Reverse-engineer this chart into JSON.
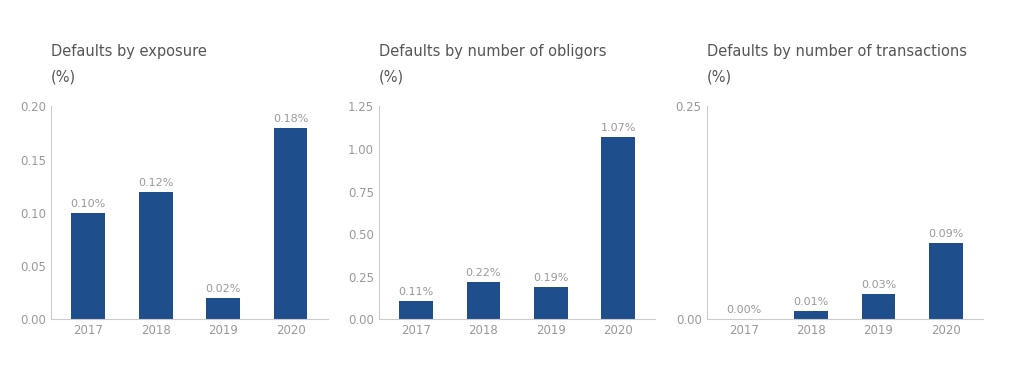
{
  "charts": [
    {
      "title": "Defaults by exposure",
      "subtitle": "(%)",
      "years": [
        "2017",
        "2018",
        "2019",
        "2020"
      ],
      "values": [
        0.1,
        0.12,
        0.02,
        0.18
      ],
      "labels": [
        "0.10%",
        "0.12%",
        "0.02%",
        "0.18%"
      ],
      "ylim": [
        0,
        0.2
      ],
      "yticks": [
        0.0,
        0.05,
        0.1,
        0.15,
        0.2
      ],
      "ytick_labels": [
        "0.00",
        "0.05",
        "0.10",
        "0.15",
        "0.20"
      ]
    },
    {
      "title": "Defaults by number of obligors",
      "subtitle": "(%)",
      "years": [
        "2017",
        "2018",
        "2019",
        "2020"
      ],
      "values": [
        0.11,
        0.22,
        0.19,
        1.07
      ],
      "labels": [
        "0.11%",
        "0.22%",
        "0.19%",
        "1.07%"
      ],
      "ylim": [
        0,
        1.25
      ],
      "yticks": [
        0.0,
        0.25,
        0.5,
        0.75,
        1.0,
        1.25
      ],
      "ytick_labels": [
        "0.00",
        "0.25",
        "0.50",
        "0.75",
        "1.00",
        "1.25"
      ]
    },
    {
      "title": "Defaults by number of transactions",
      "subtitle": "(%)",
      "years": [
        "2017",
        "2018",
        "2019",
        "2020"
      ],
      "values": [
        0.0,
        0.01,
        0.03,
        0.09
      ],
      "labels": [
        "0.00%",
        "0.01%",
        "0.03%",
        "0.09%"
      ],
      "ylim": [
        0,
        0.25
      ],
      "yticks": [
        0.0,
        0.25
      ],
      "ytick_labels": [
        "0.00",
        "0.25"
      ]
    }
  ],
  "bar_color": "#1f4e8c",
  "background_color": "#ffffff",
  "title_fontsize": 10.5,
  "tick_fontsize": 8.5,
  "label_fontsize": 8.0,
  "title_color": "#555555",
  "tick_color": "#999999",
  "label_color": "#999999",
  "axis_color": "#cccccc"
}
